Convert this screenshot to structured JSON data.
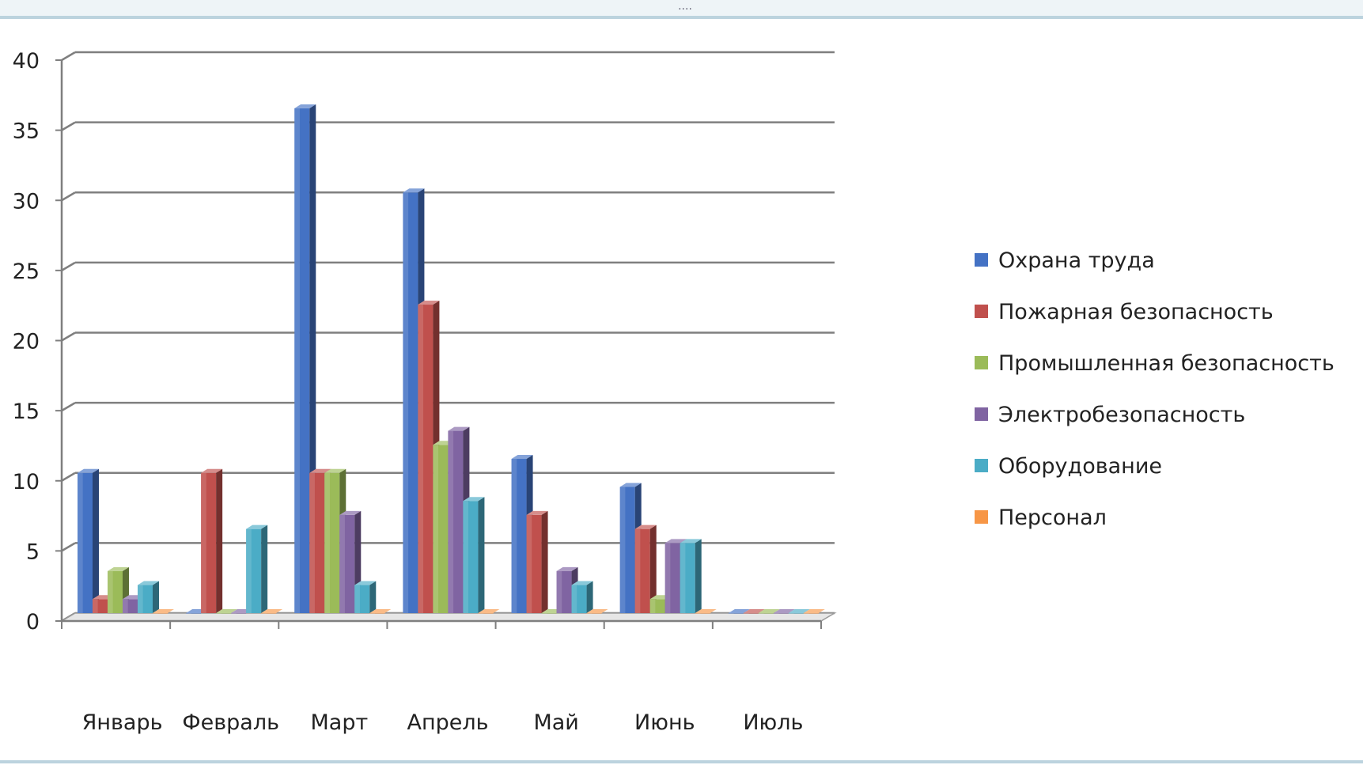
{
  "chart_data": {
    "type": "bar",
    "categories": [
      "Январь",
      "Февраль",
      "Март",
      "Апрель",
      "Май",
      "Июнь",
      "Июль"
    ],
    "series": [
      {
        "name": "Охрана труда",
        "color": "#4472C4",
        "values": [
          10,
          0,
          36,
          30,
          11,
          9,
          0
        ]
      },
      {
        "name": "Пожарная безопасность",
        "color": "#C0504D",
        "values": [
          1,
          10,
          10,
          22,
          7,
          6,
          0
        ]
      },
      {
        "name": "Промышленная безопасность",
        "color": "#9BBB59",
        "values": [
          3,
          0,
          10,
          12,
          0,
          1,
          0
        ]
      },
      {
        "name": "Электробезопасность",
        "color": "#8064A2",
        "values": [
          1,
          0,
          7,
          13,
          3,
          5,
          0
        ]
      },
      {
        "name": "Оборудование",
        "color": "#4BACC6",
        "values": [
          2,
          6,
          2,
          8,
          2,
          5,
          0
        ]
      },
      {
        "name": "Персонал",
        "color": "#F79646",
        "values": [
          0,
          0,
          0,
          0,
          0,
          0,
          0
        ]
      }
    ],
    "yticks": [
      0,
      5,
      10,
      15,
      20,
      25,
      30,
      35,
      40
    ],
    "ylim": [
      0,
      40
    ],
    "grid": true,
    "legend_position": "right",
    "title": "",
    "xlabel": "",
    "ylabel": ""
  }
}
